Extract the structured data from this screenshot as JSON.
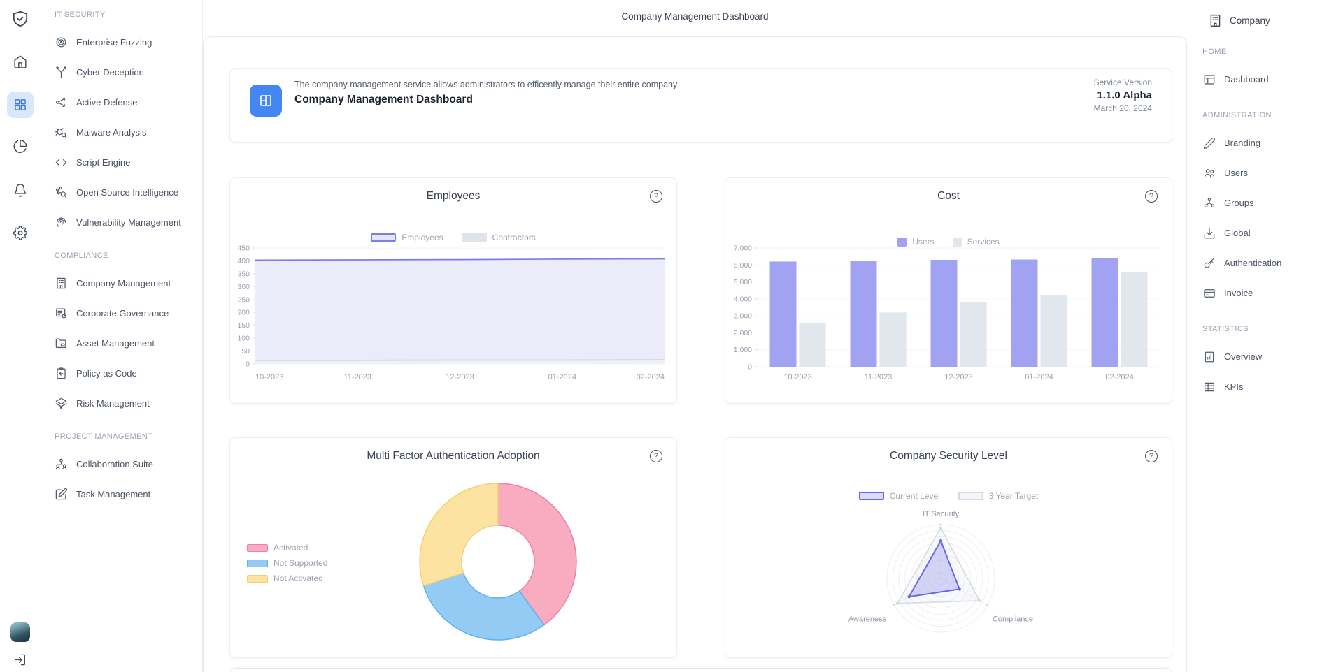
{
  "header": {
    "title": "Company Management Dashboard"
  },
  "rail": {
    "items": [
      {
        "icon": "logo-shield-icon"
      },
      {
        "icon": "home-icon"
      },
      {
        "icon": "apps-grid-icon",
        "active": true
      },
      {
        "icon": "analytics-pie-icon"
      },
      {
        "icon": "notifications-bell-icon"
      },
      {
        "icon": "settings-gear-icon"
      },
      {
        "icon": "user-avatar"
      },
      {
        "icon": "logout-icon"
      }
    ]
  },
  "left_nav": {
    "sections": [
      {
        "label": "IT SECURITY",
        "items": [
          {
            "label": "Enterprise Fuzzing",
            "icon": "target-icon"
          },
          {
            "label": "Cyber Deception",
            "icon": "fork-icon"
          },
          {
            "label": "Active Defense",
            "icon": "share-network-icon"
          },
          {
            "label": "Malware Analysis",
            "icon": "bug-search-icon"
          },
          {
            "label": "Script Engine",
            "icon": "code-icon"
          },
          {
            "label": "Open Source Intelligence",
            "icon": "network-search-icon"
          },
          {
            "label": "Vulnerability Management",
            "icon": "fingerprint-icon"
          }
        ]
      },
      {
        "label": "COMPLIANCE",
        "items": [
          {
            "label": "Company Management",
            "icon": "building-icon"
          },
          {
            "label": "Corporate Governance",
            "icon": "list-gear-icon"
          },
          {
            "label": "Asset Management",
            "icon": "folder-icon"
          },
          {
            "label": "Policy as Code",
            "icon": "clipboard-icon"
          },
          {
            "label": "Risk Management",
            "icon": "layers-icon"
          }
        ]
      },
      {
        "label": "PROJECT MANAGEMENT",
        "items": [
          {
            "label": "Collaboration Suite",
            "icon": "people-icon"
          },
          {
            "label": "Task Management",
            "icon": "edit-square-icon"
          }
        ]
      }
    ]
  },
  "right_nav": {
    "company_label": "Company",
    "company_icon": "building-icon",
    "sections": [
      {
        "label": "HOME",
        "items": [
          {
            "label": "Dashboard",
            "icon": "layout-icon"
          }
        ]
      },
      {
        "label": "ADMINISTRATION",
        "items": [
          {
            "label": "Branding",
            "icon": "pen-icon"
          },
          {
            "label": "Users",
            "icon": "users-icon"
          },
          {
            "label": "Groups",
            "icon": "org-chart-icon"
          },
          {
            "label": "Global",
            "icon": "deploy-tray-icon"
          },
          {
            "label": "Authentication",
            "icon": "key-icon"
          },
          {
            "label": "Invoice",
            "icon": "credit-card-icon"
          }
        ]
      },
      {
        "label": "STATISTICS",
        "items": [
          {
            "label": "Overview",
            "icon": "report-icon"
          },
          {
            "label": "KPIs",
            "icon": "table-icon"
          }
        ]
      }
    ]
  },
  "banner": {
    "description": "The company management service allows administrators to efficently manage their entire company",
    "title": "Company Management Dashboard",
    "icon": "dashboard-layout-icon",
    "icon_bg": "#4486f3",
    "service_version_label": "Service Version",
    "version": "1.1.0 Alpha",
    "date": "March 20, 2024"
  },
  "help_glyph": "?",
  "chart_data": [
    {
      "type": "area",
      "title": "Employees",
      "x": [
        "10-2023",
        "11-2023",
        "12-2023",
        "01-2024",
        "02-2024"
      ],
      "series": [
        {
          "name": "Employees",
          "values": [
            403,
            404,
            405,
            407,
            408
          ],
          "color": "#7c7cee",
          "fill": "#ebebfa",
          "legend_fill": "#e6e6fa"
        },
        {
          "name": "Contractors",
          "values": [
            14,
            14,
            15,
            15,
            16
          ],
          "color": "#ccd3db",
          "fill": "#eef1f5",
          "legend_fill": "#dfe4ea"
        }
      ],
      "ylim": [
        0,
        450
      ],
      "ytick_step": 50,
      "grid": true,
      "legend_position": "top-center"
    },
    {
      "type": "bar",
      "title": "Cost",
      "categories": [
        "10-2023",
        "11-2023",
        "12-2023",
        "01-2024",
        "02-2024"
      ],
      "series": [
        {
          "name": "Users",
          "values": [
            6200,
            6250,
            6300,
            6320,
            6400
          ],
          "color": "#a2a2f3"
        },
        {
          "name": "Services",
          "values": [
            2600,
            3200,
            3800,
            4200,
            5600
          ],
          "color": "#e2e7ed"
        }
      ],
      "ylim": [
        0,
        7000
      ],
      "ytick_step": 1000,
      "grid": true,
      "legend_position": "top-center"
    },
    {
      "type": "pie",
      "title": "Multi Factor Authentication Adoption",
      "labels": [
        "Activated",
        "Not Supported",
        "Not Activated"
      ],
      "values": [
        40,
        30,
        30
      ],
      "unit": "percent",
      "colors": [
        "#f9abbf",
        "#93cbf4",
        "#fce3a1"
      ],
      "borders": [
        "#f07fa5",
        "#5eb1ef",
        "#f3cf78"
      ],
      "donut": true,
      "legend_position": "left"
    },
    {
      "type": "radar",
      "title": "Company Security Level",
      "axes": [
        "IT Security",
        "Compliance",
        "Awareness"
      ],
      "series": [
        {
          "name": "Current Level",
          "values": [
            7,
            4,
            6.8
          ],
          "color": "#6868e6",
          "fill": "rgba(154,154,240,0.40)",
          "legend_fill": "#dcdcfa"
        },
        {
          "name": "3 Year Target",
          "values": [
            9.4,
            8.3,
            9.3
          ],
          "color": "#d2dae3",
          "fill": "rgba(214,221,230,0.18)",
          "legend_fill": "#f3f5f8"
        }
      ],
      "max": 10,
      "rings": 9,
      "legend_position": "top-center"
    }
  ]
}
